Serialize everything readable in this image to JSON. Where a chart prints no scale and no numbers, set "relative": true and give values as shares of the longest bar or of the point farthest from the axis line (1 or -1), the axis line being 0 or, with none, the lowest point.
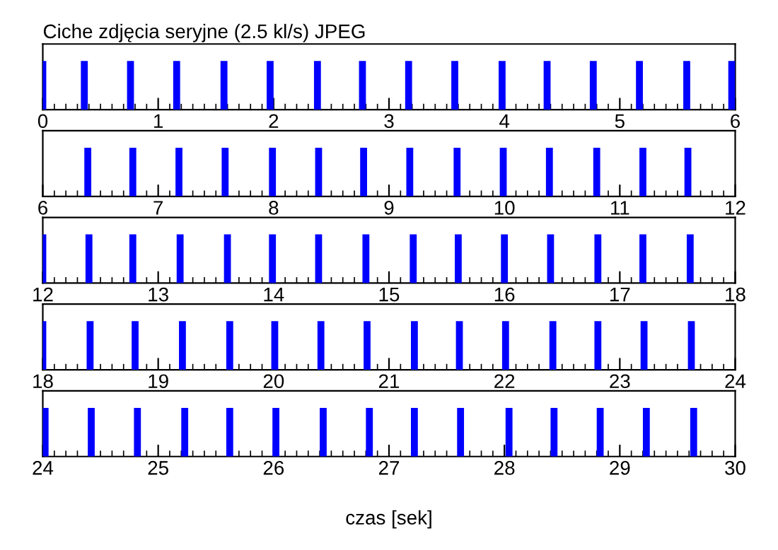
{
  "chart_data": [
    {
      "type": "bar",
      "title": "Ciche zdjęcia seryjne (2.5 kl/s) JPEG",
      "relative": true,
      "color": "#0000ff",
      "tick_labels": "x",
      "xlim": [
        0,
        6
      ],
      "xticks": [
        0,
        1,
        2,
        3,
        4,
        5,
        6
      ],
      "x": [
        0,
        0.36,
        0.76,
        1.16,
        1.57,
        1.97,
        2.38,
        2.77,
        3.17,
        3.57,
        3.98,
        4.37,
        4.77,
        5.17,
        5.58,
        5.97
      ],
      "values": [
        1,
        1,
        1,
        1,
        1,
        1,
        1,
        1,
        1,
        1,
        1,
        1,
        1,
        1,
        1,
        1
      ]
    },
    {
      "type": "bar",
      "relative": true,
      "color": "#0000ff",
      "tick_labels": "x",
      "xlim": [
        6,
        12
      ],
      "xticks": [
        6,
        7,
        8,
        9,
        10,
        11,
        12
      ],
      "x": [
        6.39,
        6.78,
        7.18,
        7.58,
        7.99,
        8.39,
        8.78,
        9.18,
        9.59,
        9.99,
        10.39,
        10.8,
        11.2,
        11.59
      ],
      "values": [
        1,
        1,
        1,
        1,
        1,
        1,
        1,
        1,
        1,
        1,
        1,
        1,
        1,
        1
      ]
    },
    {
      "type": "bar",
      "relative": true,
      "color": "#0000ff",
      "tick_labels": "x",
      "xlim": [
        12,
        18
      ],
      "xticks": [
        12,
        13,
        14,
        15,
        16,
        17,
        18
      ],
      "x": [
        12,
        12.4,
        12.78,
        13.19,
        13.6,
        13.99,
        14.39,
        14.8,
        15.21,
        15.6,
        16,
        16.4,
        16.81,
        17.2,
        17.61
      ],
      "values": [
        1,
        1,
        1,
        1,
        1,
        1,
        1,
        1,
        1,
        1,
        1,
        1,
        1,
        1,
        1
      ]
    },
    {
      "type": "bar",
      "relative": true,
      "color": "#0000ff",
      "tick_labels": "x",
      "xlim": [
        18,
        24
      ],
      "xticks": [
        18,
        19,
        20,
        21,
        22,
        23,
        24
      ],
      "x": [
        18,
        18.41,
        18.8,
        19.21,
        19.62,
        20.01,
        20.41,
        20.81,
        21.22,
        21.61,
        22.01,
        22.42,
        22.81,
        23.21,
        23.62
      ],
      "values": [
        1,
        1,
        1,
        1,
        1,
        1,
        1,
        1,
        1,
        1,
        1,
        1,
        1,
        1,
        1
      ]
    },
    {
      "type": "bar",
      "relative": true,
      "color": "#0000ff",
      "tick_labels": "x",
      "xlim": [
        24,
        30
      ],
      "xticks": [
        24,
        25,
        26,
        27,
        28,
        29,
        30
      ],
      "xlabel": "czas [sek]",
      "x": [
        24.02,
        24.42,
        24.82,
        25.23,
        25.62,
        26.02,
        26.43,
        26.83,
        27.22,
        27.62,
        28.04,
        28.43,
        28.83,
        29.23,
        29.64
      ],
      "values": [
        1,
        1,
        1,
        1,
        1,
        1,
        1,
        1,
        1,
        1,
        1,
        1,
        1,
        1,
        1
      ]
    }
  ]
}
